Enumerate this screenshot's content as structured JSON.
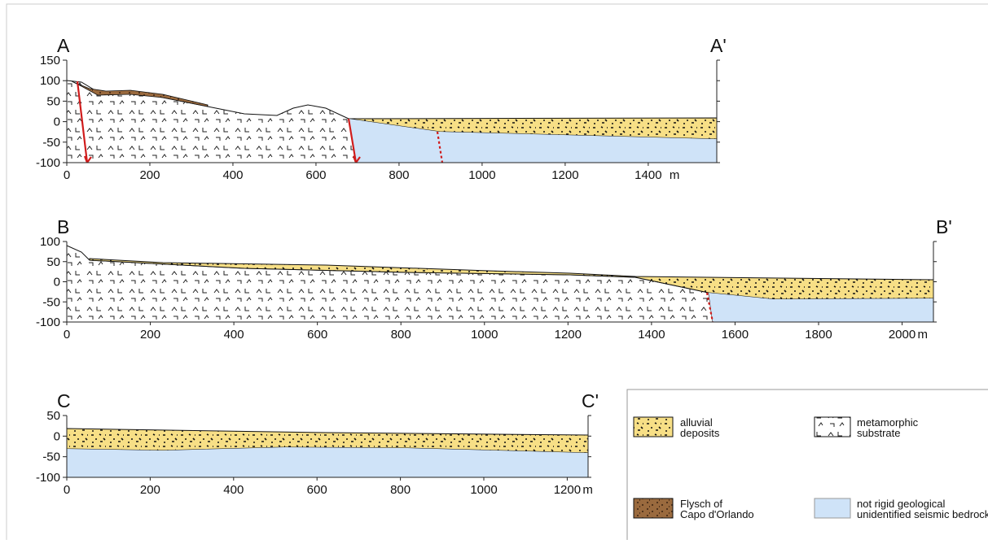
{
  "sections": [
    {
      "label": "A",
      "label_end": "A'",
      "xlim": [
        0,
        1565
      ],
      "ylim": [
        -100,
        150
      ],
      "xticks": [
        0,
        200,
        400,
        600,
        800,
        1000,
        1200,
        1400
      ],
      "yticks": [
        -100,
        -50,
        0,
        50,
        100,
        150
      ],
      "unit": "m"
    },
    {
      "label": "B",
      "label_end": "B'",
      "xlim": [
        0,
        2075
      ],
      "ylim": [
        -100,
        100
      ],
      "xticks": [
        0,
        200,
        400,
        600,
        800,
        1000,
        1200,
        1400,
        1600,
        1800,
        2000
      ],
      "yticks": [
        -100,
        -50,
        0,
        50,
        100
      ],
      "unit": "m"
    },
    {
      "label": "C",
      "label_end": "C'",
      "xlim": [
        0,
        1250
      ],
      "ylim": [
        -100,
        50
      ],
      "xticks": [
        0,
        200,
        400,
        600,
        800,
        1000,
        1200
      ],
      "yticks": [
        -100,
        -50,
        0,
        50
      ],
      "unit": "m"
    }
  ],
  "legend": [
    {
      "label": [
        "alluvial",
        "deposits"
      ]
    },
    {
      "label": [
        "metamorphic",
        "substrate"
      ]
    },
    {
      "label": [
        "Flysch of",
        "Capo d'Orlando"
      ]
    },
    {
      "label": [
        "not rigid geological",
        "unidentified seismic bedrock"
      ]
    }
  ]
}
